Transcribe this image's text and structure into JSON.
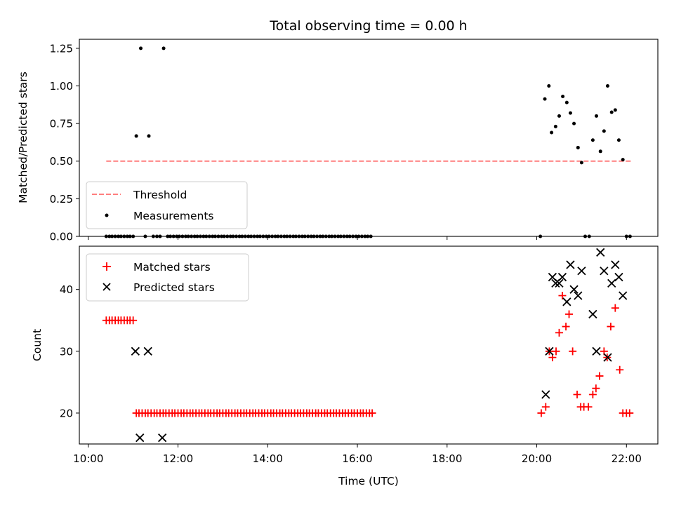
{
  "chart_data": [
    {
      "type": "scatter",
      "title": "Total observing time = 0.00 h",
      "xlabel": "",
      "ylabel": "Matched/Predicted stars",
      "xlim": [
        9.8,
        22.7
      ],
      "ylim": [
        0,
        1.31
      ],
      "yticks": [
        0,
        0.25,
        0.5,
        0.75,
        1.0,
        1.25
      ],
      "ytick_labels": [
        "0.00",
        "0.25",
        "0.50",
        "0.75",
        "1.00",
        "1.25"
      ],
      "xticks": [
        10,
        12,
        14,
        16,
        18,
        20,
        22
      ],
      "xtick_labels_visible": false,
      "legend_position": "lower-left",
      "series": [
        {
          "name": "Threshold",
          "kind": "line",
          "style": "dashed",
          "color": "#ff7f7f",
          "x": [
            10.4,
            22.1
          ],
          "y": [
            0.5,
            0.5
          ]
        },
        {
          "name": "Measurements",
          "kind": "points",
          "color": "#000000",
          "points": [
            [
              10.4,
              0
            ],
            [
              10.47,
              0
            ],
            [
              10.53,
              0
            ],
            [
              10.6,
              0
            ],
            [
              10.67,
              0
            ],
            [
              10.73,
              0
            ],
            [
              10.8,
              0
            ],
            [
              10.87,
              0
            ],
            [
              10.93,
              0
            ],
            [
              11.0,
              0
            ],
            [
              11.07,
              0.667
            ],
            [
              11.17,
              1.25
            ],
            [
              11.27,
              0
            ],
            [
              11.35,
              0.667
            ],
            [
              11.45,
              0
            ],
            [
              11.53,
              0
            ],
            [
              11.6,
              0
            ],
            [
              11.68,
              1.25
            ],
            [
              11.77,
              0
            ],
            [
              11.83,
              0
            ],
            [
              11.9,
              0
            ],
            [
              11.97,
              0
            ],
            [
              12.03,
              0
            ],
            [
              12.1,
              0
            ],
            [
              12.17,
              0
            ],
            [
              12.23,
              0
            ],
            [
              12.3,
              0
            ],
            [
              12.37,
              0
            ],
            [
              12.43,
              0
            ],
            [
              12.5,
              0
            ],
            [
              12.57,
              0
            ],
            [
              12.63,
              0
            ],
            [
              12.7,
              0
            ],
            [
              12.77,
              0
            ],
            [
              12.83,
              0
            ],
            [
              12.9,
              0
            ],
            [
              12.97,
              0
            ],
            [
              13.03,
              0
            ],
            [
              13.1,
              0
            ],
            [
              13.17,
              0
            ],
            [
              13.23,
              0
            ],
            [
              13.3,
              0
            ],
            [
              13.37,
              0
            ],
            [
              13.43,
              0
            ],
            [
              13.5,
              0
            ],
            [
              13.57,
              0
            ],
            [
              13.63,
              0
            ],
            [
              13.7,
              0
            ],
            [
              13.77,
              0
            ],
            [
              13.83,
              0
            ],
            [
              13.9,
              0
            ],
            [
              13.97,
              0
            ],
            [
              14.03,
              0
            ],
            [
              14.1,
              0
            ],
            [
              14.17,
              0
            ],
            [
              14.23,
              0
            ],
            [
              14.3,
              0
            ],
            [
              14.37,
              0
            ],
            [
              14.43,
              0
            ],
            [
              14.5,
              0
            ],
            [
              14.57,
              0
            ],
            [
              14.63,
              0
            ],
            [
              14.7,
              0
            ],
            [
              14.77,
              0
            ],
            [
              14.83,
              0
            ],
            [
              14.9,
              0
            ],
            [
              14.97,
              0
            ],
            [
              15.03,
              0
            ],
            [
              15.1,
              0
            ],
            [
              15.17,
              0
            ],
            [
              15.23,
              0
            ],
            [
              15.3,
              0
            ],
            [
              15.37,
              0
            ],
            [
              15.43,
              0
            ],
            [
              15.5,
              0
            ],
            [
              15.57,
              0
            ],
            [
              15.63,
              0
            ],
            [
              15.7,
              0
            ],
            [
              15.77,
              0
            ],
            [
              15.83,
              0
            ],
            [
              15.9,
              0
            ],
            [
              15.97,
              0
            ],
            [
              16.03,
              0
            ],
            [
              16.1,
              0
            ],
            [
              16.17,
              0
            ],
            [
              16.23,
              0
            ],
            [
              16.3,
              0
            ],
            [
              20.08,
              0
            ],
            [
              20.18,
              0.913
            ],
            [
              20.27,
              1.0
            ],
            [
              20.33,
              0.69
            ],
            [
              20.42,
              0.73
            ],
            [
              20.5,
              0.8
            ],
            [
              20.58,
              0.93
            ],
            [
              20.67,
              0.89
            ],
            [
              20.75,
              0.82
            ],
            [
              20.83,
              0.75
            ],
            [
              20.92,
              0.59
            ],
            [
              21.0,
              0.49
            ],
            [
              21.08,
              0
            ],
            [
              21.17,
              0
            ],
            [
              21.25,
              0.64
            ],
            [
              21.33,
              0.8
            ],
            [
              21.42,
              0.565
            ],
            [
              21.5,
              0.7
            ],
            [
              21.58,
              1.0
            ],
            [
              21.67,
              0.825
            ],
            [
              21.75,
              0.84
            ],
            [
              21.83,
              0.64
            ],
            [
              21.92,
              0.51
            ],
            [
              22.0,
              0
            ],
            [
              22.08,
              0
            ]
          ]
        }
      ]
    },
    {
      "type": "scatter",
      "title": "",
      "xlabel": "Time (UTC)",
      "ylabel": "Count",
      "xlim": [
        9.8,
        22.7
      ],
      "ylim": [
        15,
        47
      ],
      "yticks": [
        20,
        30,
        40
      ],
      "ytick_labels": [
        "20",
        "30",
        "40"
      ],
      "xticks": [
        10,
        12,
        14,
        16,
        18,
        20,
        22
      ],
      "xtick_labels": [
        "10:00",
        "12:00",
        "14:00",
        "16:00",
        "18:00",
        "20:00",
        "22:00"
      ],
      "legend_position": "upper-left",
      "series": [
        {
          "name": "Matched stars",
          "kind": "plus",
          "color": "#ff0000",
          "points": [
            [
              10.4,
              35
            ],
            [
              10.47,
              35
            ],
            [
              10.53,
              35
            ],
            [
              10.6,
              35
            ],
            [
              10.67,
              35
            ],
            [
              10.73,
              35
            ],
            [
              10.8,
              35
            ],
            [
              10.87,
              35
            ],
            [
              10.93,
              35
            ],
            [
              11.0,
              35
            ],
            [
              11.07,
              20
            ],
            [
              11.13,
              20
            ],
            [
              11.2,
              20
            ],
            [
              11.27,
              20
            ],
            [
              11.33,
              20
            ],
            [
              11.4,
              20
            ],
            [
              11.47,
              20
            ],
            [
              11.53,
              20
            ],
            [
              11.6,
              20
            ],
            [
              11.67,
              20
            ],
            [
              11.73,
              20
            ],
            [
              11.8,
              20
            ],
            [
              11.87,
              20
            ],
            [
              11.93,
              20
            ],
            [
              12.0,
              20
            ],
            [
              12.07,
              20
            ],
            [
              12.13,
              20
            ],
            [
              12.2,
              20
            ],
            [
              12.27,
              20
            ],
            [
              12.33,
              20
            ],
            [
              12.4,
              20
            ],
            [
              12.47,
              20
            ],
            [
              12.53,
              20
            ],
            [
              12.6,
              20
            ],
            [
              12.67,
              20
            ],
            [
              12.73,
              20
            ],
            [
              12.8,
              20
            ],
            [
              12.87,
              20
            ],
            [
              12.93,
              20
            ],
            [
              13.0,
              20
            ],
            [
              13.07,
              20
            ],
            [
              13.13,
              20
            ],
            [
              13.2,
              20
            ],
            [
              13.27,
              20
            ],
            [
              13.33,
              20
            ],
            [
              13.4,
              20
            ],
            [
              13.47,
              20
            ],
            [
              13.53,
              20
            ],
            [
              13.6,
              20
            ],
            [
              13.67,
              20
            ],
            [
              13.73,
              20
            ],
            [
              13.8,
              20
            ],
            [
              13.87,
              20
            ],
            [
              13.93,
              20
            ],
            [
              14.0,
              20
            ],
            [
              14.07,
              20
            ],
            [
              14.13,
              20
            ],
            [
              14.2,
              20
            ],
            [
              14.27,
              20
            ],
            [
              14.33,
              20
            ],
            [
              14.4,
              20
            ],
            [
              14.47,
              20
            ],
            [
              14.53,
              20
            ],
            [
              14.6,
              20
            ],
            [
              14.67,
              20
            ],
            [
              14.73,
              20
            ],
            [
              14.8,
              20
            ],
            [
              14.87,
              20
            ],
            [
              14.93,
              20
            ],
            [
              15.0,
              20
            ],
            [
              15.07,
              20
            ],
            [
              15.13,
              20
            ],
            [
              15.2,
              20
            ],
            [
              15.27,
              20
            ],
            [
              15.33,
              20
            ],
            [
              15.4,
              20
            ],
            [
              15.47,
              20
            ],
            [
              15.53,
              20
            ],
            [
              15.6,
              20
            ],
            [
              15.67,
              20
            ],
            [
              15.73,
              20
            ],
            [
              15.8,
              20
            ],
            [
              15.87,
              20
            ],
            [
              15.93,
              20
            ],
            [
              16.0,
              20
            ],
            [
              16.07,
              20
            ],
            [
              16.13,
              20
            ],
            [
              16.2,
              20
            ],
            [
              16.27,
              20
            ],
            [
              16.33,
              20
            ],
            [
              20.1,
              20
            ],
            [
              20.2,
              21
            ],
            [
              20.28,
              30
            ],
            [
              20.35,
              29
            ],
            [
              20.43,
              30
            ],
            [
              20.5,
              33
            ],
            [
              20.57,
              39
            ],
            [
              20.65,
              34
            ],
            [
              20.72,
              36
            ],
            [
              20.8,
              30
            ],
            [
              20.9,
              23
            ],
            [
              20.98,
              21
            ],
            [
              21.05,
              21
            ],
            [
              21.15,
              21
            ],
            [
              21.25,
              23
            ],
            [
              21.32,
              24
            ],
            [
              21.4,
              26
            ],
            [
              21.5,
              30
            ],
            [
              21.57,
              29
            ],
            [
              21.65,
              34
            ],
            [
              21.75,
              37
            ],
            [
              21.85,
              27
            ],
            [
              21.92,
              20
            ],
            [
              22.0,
              20
            ],
            [
              22.07,
              20
            ]
          ]
        },
        {
          "name": "Predicted stars",
          "kind": "x",
          "color": "#000000",
          "points": [
            [
              11.05,
              30
            ],
            [
              11.15,
              16
            ],
            [
              11.33,
              30
            ],
            [
              11.65,
              16
            ],
            [
              20.2,
              23
            ],
            [
              20.28,
              30
            ],
            [
              20.35,
              42
            ],
            [
              20.42,
              41
            ],
            [
              20.5,
              41
            ],
            [
              20.57,
              42
            ],
            [
              20.67,
              38
            ],
            [
              20.75,
              44
            ],
            [
              20.83,
              40
            ],
            [
              20.92,
              39
            ],
            [
              21.0,
              43
            ],
            [
              21.25,
              36
            ],
            [
              21.33,
              30
            ],
            [
              21.42,
              46
            ],
            [
              21.5,
              43
            ],
            [
              21.58,
              29
            ],
            [
              21.67,
              41
            ],
            [
              21.75,
              44
            ],
            [
              21.83,
              42
            ],
            [
              21.92,
              39
            ]
          ]
        }
      ]
    }
  ]
}
